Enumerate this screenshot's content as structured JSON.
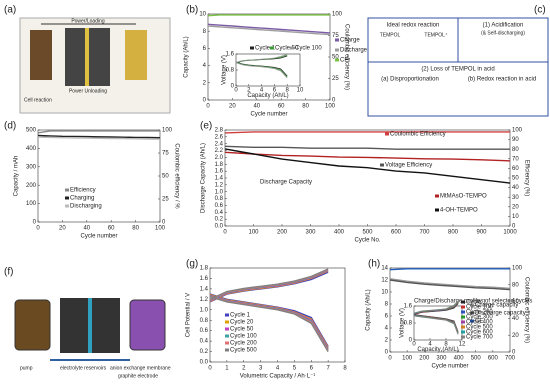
{
  "chart_data": [
    {
      "type": "line",
      "panel": "(b)",
      "xlabel": "Cycle number",
      "ylabel": "Capacity (Ah/L)",
      "y2label": "Coulombic efficiency (%)",
      "xlim": [
        0,
        100
      ],
      "xticks": [
        0,
        20,
        40,
        60,
        80,
        100
      ],
      "ylim": [
        0,
        10
      ],
      "yticks": [
        0,
        2,
        4,
        6,
        8,
        10
      ],
      "y2lim": [
        0,
        100
      ],
      "y2ticks": [
        0,
        25,
        50,
        75,
        100
      ],
      "x": [
        0,
        10,
        20,
        30,
        40,
        50,
        60,
        70,
        80,
        90,
        100
      ],
      "series": [
        {
          "name": "Charge",
          "color": "#7b5aa6",
          "values": [
            8.8,
            8.7,
            8.6,
            8.5,
            8.4,
            8.3,
            8.2,
            8.1,
            8.0,
            7.9,
            7.8
          ]
        },
        {
          "name": "Discharge",
          "color": "#9e9e9e",
          "values": [
            8.6,
            8.5,
            8.4,
            8.3,
            8.2,
            8.1,
            8.0,
            7.9,
            7.8,
            7.7,
            7.6
          ]
        },
        {
          "name": "CE",
          "color": "#7ac143",
          "axis": "y2",
          "values": [
            98,
            99,
            99,
            99,
            99,
            99,
            99,
            99,
            99,
            99,
            99
          ]
        }
      ]
    },
    {
      "type": "line",
      "xlabel": "Capacity (Ah/L)",
      "ylabel": "Voltage (V)",
      "xlim": [
        0,
        10
      ],
      "xticks": [
        0,
        2,
        4,
        6,
        8,
        10
      ],
      "ylim": [
        0,
        1.6
      ],
      "yticks": [
        0,
        0.8,
        1.6
      ],
      "x": [
        0,
        1,
        2,
        3,
        4,
        5,
        6,
        7,
        8
      ],
      "series": [
        {
          "name": "Cycle 1",
          "color": "#222222",
          "values": [
            1.15,
            1.25,
            1.28,
            1.3,
            1.32,
            1.34,
            1.36,
            1.4,
            1.5
          ],
          "discharge": [
            1.2,
            1.1,
            1.05,
            1.02,
            1.0,
            0.97,
            0.93,
            0.85,
            0.5
          ]
        },
        {
          "name": "Cycle 50",
          "color": "#3a9a3a",
          "values": [
            1.17,
            1.26,
            1.29,
            1.31,
            1.33,
            1.35,
            1.38,
            1.44,
            1.55
          ],
          "discharge": [
            1.18,
            1.08,
            1.03,
            1.0,
            0.98,
            0.95,
            0.9,
            0.8,
            0.45
          ]
        },
        {
          "name": "Cycle 100",
          "color": "#999999",
          "values": [
            1.18,
            1.27,
            1.3,
            1.32,
            1.34,
            1.37,
            1.4,
            1.48,
            1.58
          ],
          "discharge": [
            1.16,
            1.06,
            1.01,
            0.98,
            0.96,
            0.92,
            0.87,
            0.75,
            0.4
          ]
        }
      ]
    },
    {
      "type": "line",
      "panel": "(d)",
      "xlabel": "Cycle number",
      "ylabel": "Capacity / mAh",
      "y2label": "Coulombic efficiency / %",
      "xlim": [
        0,
        100
      ],
      "xticks": [
        0,
        20,
        40,
        60,
        80,
        100
      ],
      "ylim": [
        0,
        500
      ],
      "yticks": [
        0,
        100,
        200,
        300,
        400,
        500
      ],
      "y2lim": [
        0,
        100
      ],
      "y2ticks": [
        0,
        25,
        50,
        75,
        100
      ],
      "x": [
        0,
        10,
        20,
        30,
        40,
        50,
        60,
        70,
        80,
        90,
        100
      ],
      "series": [
        {
          "name": "Efficiency",
          "color": "#888888",
          "axis": "y2",
          "values": [
            97,
            99,
            99,
            99,
            99,
            99,
            99,
            99,
            99,
            99,
            99
          ]
        },
        {
          "name": "Charging",
          "color": "#222222",
          "values": [
            470,
            468,
            466,
            465,
            464,
            463,
            462,
            461,
            460,
            459,
            458
          ]
        },
        {
          "name": "Discharging",
          "color": "#bbbbbb",
          "values": [
            462,
            460,
            458,
            457,
            456,
            455,
            454,
            453,
            452,
            451,
            450
          ]
        }
      ]
    },
    {
      "type": "line",
      "panel": "(e)",
      "xlabel": "Cycle No.",
      "ylabel": "Discharge Capacity (Ah/L)",
      "y2label": "Efficiency (%)",
      "annotation": "Discharge Capacity",
      "xlim": [
        0,
        1000
      ],
      "xticks": [
        0,
        100,
        200,
        300,
        400,
        500,
        600,
        700,
        800,
        900,
        1000
      ],
      "ylim": [
        0,
        2.8
      ],
      "yticks": [
        {
          "value": 0,
          "label": "0.0"
        },
        0.2,
        0.4,
        0.6,
        0.8,
        {
          "value": 1,
          "label": "1.0"
        },
        1.2,
        1.4,
        1.6,
        1.8,
        {
          "value": 2,
          "label": "2.0"
        },
        2.2,
        2.4,
        2.6,
        2.8
      ],
      "y2lim": [
        0,
        100
      ],
      "y2ticks": [
        0,
        10,
        20,
        30,
        40,
        50,
        60,
        70,
        80,
        90,
        100
      ],
      "x": [
        0,
        100,
        200,
        300,
        400,
        500,
        600,
        700,
        800,
        900,
        1000
      ],
      "series": [
        {
          "name": "Coulombic Efficiency",
          "color": "#d04040",
          "axis": "y2",
          "values": [
            97,
            98,
            98,
            98,
            98,
            98,
            98,
            98,
            98,
            98,
            98
          ]
        },
        {
          "name": "Voltage Efficiency",
          "color": "#555555",
          "axis": "y2",
          "values": [
            83,
            82,
            82,
            81,
            81,
            81,
            80,
            80,
            80,
            80,
            80
          ]
        },
        {
          "name": "MtMAsO-TEMPO",
          "color": "#b22222",
          "values": [
            2.15,
            2.1,
            2.06,
            2.04,
            2.01,
            2.0,
            1.98,
            1.96,
            1.95,
            1.93,
            1.9
          ]
        },
        {
          "name": "4-OH-TEMPO",
          "color": "#111111",
          "values": [
            2.25,
            2.1,
            1.95,
            1.85,
            1.75,
            1.7,
            1.6,
            1.55,
            1.45,
            1.35,
            1.25
          ]
        }
      ]
    },
    {
      "type": "line",
      "panel": "(g)",
      "xlabel": "Volumetric Capacity / Ah·L⁻¹",
      "ylabel": "Cell Potential / V",
      "xlim": [
        0,
        8
      ],
      "xticks": [
        0,
        1,
        2,
        3,
        4,
        5,
        6,
        7,
        8
      ],
      "ylim": [
        0,
        1.8
      ],
      "yticks": [
        {
          "value": 0,
          "label": "0.0"
        },
        0.2,
        0.4,
        0.6,
        0.8,
        {
          "value": 1,
          "label": "1.0"
        },
        1.2,
        1.4,
        1.6,
        1.8
      ],
      "x": [
        0,
        1,
        2,
        3,
        4,
        5,
        6,
        7
      ],
      "series": [
        {
          "name": "Cycle 1",
          "color": "#4040c0",
          "values": [
            1.15,
            1.3,
            1.36,
            1.4,
            1.44,
            1.5,
            1.58,
            1.72
          ],
          "discharge": [
            1.3,
            1.2,
            1.15,
            1.1,
            1.05,
            0.98,
            0.85,
            0.3
          ]
        },
        {
          "name": "Cycle 20",
          "color": "#e0a000",
          "values": [
            1.16,
            1.31,
            1.37,
            1.41,
            1.45,
            1.51,
            1.6,
            1.74
          ],
          "discharge": [
            1.29,
            1.19,
            1.14,
            1.09,
            1.04,
            0.96,
            0.82,
            0.28
          ]
        },
        {
          "name": "Cycle 50",
          "color": "#c040c0",
          "values": [
            1.17,
            1.32,
            1.38,
            1.42,
            1.46,
            1.52,
            1.61,
            1.75
          ],
          "discharge": [
            1.28,
            1.18,
            1.13,
            1.08,
            1.03,
            0.95,
            0.8,
            0.26
          ]
        },
        {
          "name": "Cycle 100",
          "color": "#40a0a0",
          "values": [
            1.18,
            1.33,
            1.39,
            1.43,
            1.47,
            1.53,
            1.62,
            1.76
          ],
          "discharge": [
            1.27,
            1.17,
            1.12,
            1.07,
            1.02,
            0.94,
            0.78,
            0.24
          ]
        },
        {
          "name": "Cycle 200",
          "color": "#e07070",
          "values": [
            1.19,
            1.34,
            1.4,
            1.44,
            1.48,
            1.54,
            1.63,
            1.77
          ],
          "discharge": [
            1.26,
            1.16,
            1.11,
            1.06,
            1.01,
            0.93,
            0.76,
            0.22
          ]
        },
        {
          "name": "Cycle 500",
          "color": "#808080",
          "values": [
            1.2,
            1.35,
            1.41,
            1.45,
            1.49,
            1.55,
            1.64,
            1.78
          ],
          "discharge": [
            1.25,
            1.15,
            1.1,
            1.05,
            1.0,
            0.92,
            0.74,
            0.2
          ]
        }
      ]
    },
    {
      "type": "line",
      "panel": "(h)",
      "xlabel": "Cycle number",
      "ylabel": "Capacity (Ah/L)",
      "y2label": "Coulombic efficiency (%)",
      "xlim": [
        0,
        700
      ],
      "xticks": [
        0,
        100,
        200,
        300,
        400,
        500,
        600,
        700
      ],
      "ylim": [
        0,
        14
      ],
      "yticks": [
        0,
        2,
        4,
        6,
        8,
        10,
        12,
        14
      ],
      "y2lim": [
        0,
        100
      ],
      "y2ticks": [
        0,
        20,
        40,
        60,
        80,
        100
      ],
      "x": [
        0,
        100,
        200,
        300,
        400,
        500,
        600,
        700
      ],
      "series": [
        {
          "name": "Charge capacity",
          "color": "#999999",
          "values": [
            12.2,
            11.8,
            11.5,
            11.3,
            11.1,
            10.9,
            10.8,
            10.6
          ]
        },
        {
          "name": "Discharge capacity",
          "color": "#555555",
          "values": [
            12.0,
            11.6,
            11.3,
            11.1,
            10.9,
            10.7,
            10.6,
            10.4
          ]
        },
        {
          "name": "CE",
          "color": "#2060c0",
          "axis": "y2",
          "values": [
            98,
            99,
            99,
            99,
            99,
            99,
            99,
            99
          ]
        }
      ]
    },
    {
      "type": "line",
      "title": "Charge/Discharge profiles of selected cycles",
      "xlabel": "Capacity (Ah/L)",
      "ylabel": "Voltage (V)",
      "xlim": [
        0,
        12
      ],
      "xticks": [
        0,
        4,
        8,
        12
      ],
      "ylim": [
        0,
        1.6
      ],
      "yticks": [
        0,
        0.8,
        1.6
      ],
      "x": [
        0,
        2,
        4,
        6,
        8,
        10,
        11
      ],
      "series": [
        {
          "name": "Cycle 1",
          "color": "#222222",
          "values": [
            1.2,
            1.3,
            1.33,
            1.36,
            1.4,
            1.5,
            1.7
          ],
          "discharge": [
            1.2,
            1.15,
            1.1,
            1.05,
            1.0,
            0.9,
            0.4
          ]
        },
        {
          "name": "Cycle 100",
          "color": "#c03030",
          "values": [
            1.21,
            1.31,
            1.34,
            1.37,
            1.41,
            1.52,
            1.72
          ],
          "discharge": [
            1.19,
            1.14,
            1.09,
            1.04,
            0.99,
            0.88,
            0.38
          ]
        },
        {
          "name": "Cycle 200",
          "color": "#3050c0",
          "values": [
            1.22,
            1.32,
            1.35,
            1.38,
            1.42,
            1.54,
            1.74
          ],
          "discharge": [
            1.18,
            1.13,
            1.08,
            1.03,
            0.98,
            0.86,
            0.36
          ]
        },
        {
          "name": "Cycle 300",
          "color": "#2a9a2a",
          "values": [
            1.23,
            1.33,
            1.36,
            1.39,
            1.43,
            1.56,
            1.76
          ],
          "discharge": [
            1.17,
            1.12,
            1.07,
            1.02,
            0.97,
            0.84,
            0.34
          ]
        },
        {
          "name": "Cycle 400",
          "color": "#a040a0",
          "values": [
            1.24,
            1.34,
            1.37,
            1.4,
            1.44,
            1.58,
            1.78
          ],
          "discharge": [
            1.16,
            1.11,
            1.06,
            1.01,
            0.96,
            0.82,
            0.32
          ]
        },
        {
          "name": "Cycle 500",
          "color": "#d08020",
          "values": [
            1.25,
            1.35,
            1.38,
            1.41,
            1.45,
            1.6,
            1.8
          ],
          "discharge": [
            1.15,
            1.1,
            1.05,
            1.0,
            0.95,
            0.8,
            0.3
          ]
        },
        {
          "name": "Cycle 600",
          "color": "#20a0a0",
          "values": [
            1.26,
            1.36,
            1.39,
            1.42,
            1.46,
            1.62,
            1.82
          ],
          "discharge": [
            1.14,
            1.09,
            1.04,
            0.99,
            0.94,
            0.78,
            0.28
          ]
        },
        {
          "name": "Cycle 700",
          "color": "#808080",
          "values": [
            1.27,
            1.37,
            1.4,
            1.43,
            1.47,
            1.64,
            1.84
          ],
          "discharge": [
            1.13,
            1.08,
            1.03,
            0.98,
            0.93,
            0.76,
            0.26
          ]
        }
      ]
    }
  ],
  "diagrams": {
    "a": {
      "panel": "(a)",
      "labels": [
        "Power/Loading",
        "Power Unloading",
        "Cell reaction"
      ]
    },
    "c": {
      "panel": "(c)",
      "labels": [
        "Ideal redox reaction",
        "TEMPOL",
        "TEMPOL⁺",
        "(1) Acidification",
        "(& Self-discharging)",
        "(2) Loss of TEMPOL in acid",
        "(a) Disproportionation",
        "(b) Redox reaction in acid"
      ]
    },
    "f": {
      "panel": "(f)",
      "labels": [
        "pump",
        "electrolyte reservoirs",
        "anion exchange membrane",
        "graphite electrode"
      ]
    }
  }
}
